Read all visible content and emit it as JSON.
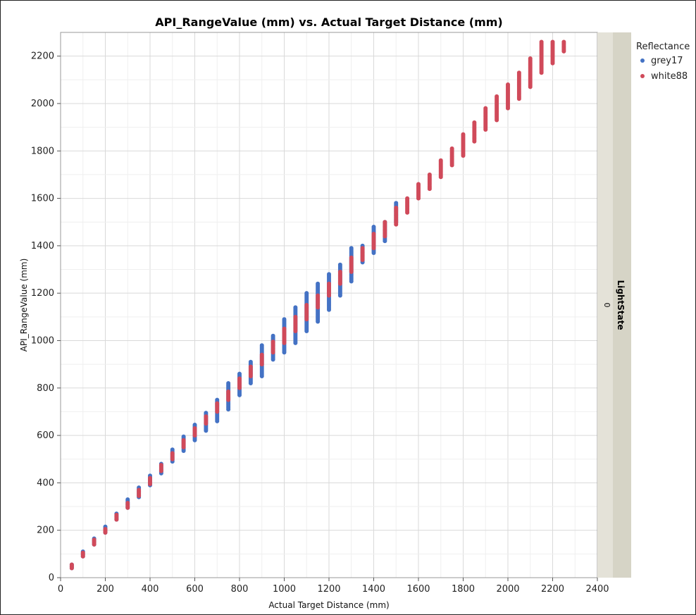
{
  "chart_data": {
    "type": "scatter",
    "title": "API_RangeValue (mm) vs. Actual Target Distance (mm)",
    "xlabel": "Actual Target Distance (mm)",
    "ylabel": "API_RangeValue (mm)",
    "xlim": [
      0,
      2400
    ],
    "ylim": [
      0,
      2300
    ],
    "x_ticks": [
      0,
      200,
      400,
      600,
      800,
      1000,
      1200,
      1400,
      1600,
      1800,
      2000,
      2200,
      2400
    ],
    "y_ticks": [
      0,
      200,
      400,
      600,
      800,
      1000,
      1200,
      1400,
      1600,
      1800,
      2000,
      2200
    ],
    "grid": true,
    "legend": {
      "title": "Reflectance",
      "position": "right"
    },
    "facet": {
      "label": "LightState",
      "value": "0"
    },
    "series": [
      {
        "name": "grey17",
        "color": "#4472C4",
        "groups": [
          {
            "x": 50,
            "y_min": 40,
            "y_max": 55
          },
          {
            "x": 100,
            "y_min": 90,
            "y_max": 110
          },
          {
            "x": 150,
            "y_min": 140,
            "y_max": 165
          },
          {
            "x": 200,
            "y_min": 190,
            "y_max": 215
          },
          {
            "x": 250,
            "y_min": 245,
            "y_max": 270
          },
          {
            "x": 300,
            "y_min": 295,
            "y_max": 330
          },
          {
            "x": 350,
            "y_min": 340,
            "y_max": 380
          },
          {
            "x": 400,
            "y_min": 390,
            "y_max": 430
          },
          {
            "x": 450,
            "y_min": 440,
            "y_max": 480
          },
          {
            "x": 500,
            "y_min": 490,
            "y_max": 540
          },
          {
            "x": 550,
            "y_min": 535,
            "y_max": 595
          },
          {
            "x": 600,
            "y_min": 580,
            "y_max": 645
          },
          {
            "x": 650,
            "y_min": 620,
            "y_max": 695
          },
          {
            "x": 700,
            "y_min": 660,
            "y_max": 750
          },
          {
            "x": 750,
            "y_min": 710,
            "y_max": 820
          },
          {
            "x": 800,
            "y_min": 770,
            "y_max": 860
          },
          {
            "x": 850,
            "y_min": 820,
            "y_max": 910
          },
          {
            "x": 900,
            "y_min": 850,
            "y_max": 980
          },
          {
            "x": 950,
            "y_min": 920,
            "y_max": 1020
          },
          {
            "x": 1000,
            "y_min": 950,
            "y_max": 1090
          },
          {
            "x": 1050,
            "y_min": 990,
            "y_max": 1140
          },
          {
            "x": 1100,
            "y_min": 1040,
            "y_max": 1200
          },
          {
            "x": 1150,
            "y_min": 1080,
            "y_max": 1240
          },
          {
            "x": 1200,
            "y_min": 1130,
            "y_max": 1280
          },
          {
            "x": 1250,
            "y_min": 1190,
            "y_max": 1320
          },
          {
            "x": 1300,
            "y_min": 1250,
            "y_max": 1390
          },
          {
            "x": 1350,
            "y_min": 1330,
            "y_max": 1400
          },
          {
            "x": 1400,
            "y_min": 1370,
            "y_max": 1480
          },
          {
            "x": 1450,
            "y_min": 1420,
            "y_max": 1500
          },
          {
            "x": 1500,
            "y_min": 1500,
            "y_max": 1580
          }
        ]
      },
      {
        "name": "white88",
        "color": "#D04A5A",
        "groups": [
          {
            "x": 50,
            "y_min": 40,
            "y_max": 55
          },
          {
            "x": 100,
            "y_min": 90,
            "y_max": 105
          },
          {
            "x": 150,
            "y_min": 140,
            "y_max": 160
          },
          {
            "x": 200,
            "y_min": 190,
            "y_max": 205
          },
          {
            "x": 250,
            "y_min": 245,
            "y_max": 265
          },
          {
            "x": 300,
            "y_min": 295,
            "y_max": 315
          },
          {
            "x": 350,
            "y_min": 345,
            "y_max": 370
          },
          {
            "x": 400,
            "y_min": 395,
            "y_max": 420
          },
          {
            "x": 450,
            "y_min": 450,
            "y_max": 475
          },
          {
            "x": 500,
            "y_min": 500,
            "y_max": 525
          },
          {
            "x": 550,
            "y_min": 550,
            "y_max": 580
          },
          {
            "x": 600,
            "y_min": 600,
            "y_max": 630
          },
          {
            "x": 650,
            "y_min": 650,
            "y_max": 680
          },
          {
            "x": 700,
            "y_min": 700,
            "y_max": 735
          },
          {
            "x": 750,
            "y_min": 750,
            "y_max": 785
          },
          {
            "x": 800,
            "y_min": 800,
            "y_max": 840
          },
          {
            "x": 850,
            "y_min": 850,
            "y_max": 890
          },
          {
            "x": 900,
            "y_min": 900,
            "y_max": 940
          },
          {
            "x": 950,
            "y_min": 950,
            "y_max": 995
          },
          {
            "x": 1000,
            "y_min": 990,
            "y_max": 1050
          },
          {
            "x": 1050,
            "y_min": 1040,
            "y_max": 1100
          },
          {
            "x": 1100,
            "y_min": 1090,
            "y_max": 1150
          },
          {
            "x": 1150,
            "y_min": 1140,
            "y_max": 1190
          },
          {
            "x": 1200,
            "y_min": 1190,
            "y_max": 1240
          },
          {
            "x": 1250,
            "y_min": 1240,
            "y_max": 1290
          },
          {
            "x": 1300,
            "y_min": 1290,
            "y_max": 1350
          },
          {
            "x": 1350,
            "y_min": 1340,
            "y_max": 1390
          },
          {
            "x": 1400,
            "y_min": 1390,
            "y_max": 1450
          },
          {
            "x": 1450,
            "y_min": 1440,
            "y_max": 1500
          },
          {
            "x": 1500,
            "y_min": 1490,
            "y_max": 1560
          },
          {
            "x": 1550,
            "y_min": 1540,
            "y_max": 1600
          },
          {
            "x": 1600,
            "y_min": 1600,
            "y_max": 1660
          },
          {
            "x": 1650,
            "y_min": 1640,
            "y_max": 1700
          },
          {
            "x": 1700,
            "y_min": 1690,
            "y_max": 1760
          },
          {
            "x": 1750,
            "y_min": 1740,
            "y_max": 1810
          },
          {
            "x": 1800,
            "y_min": 1780,
            "y_max": 1870
          },
          {
            "x": 1850,
            "y_min": 1840,
            "y_max": 1920
          },
          {
            "x": 1900,
            "y_min": 1890,
            "y_max": 1980
          },
          {
            "x": 1950,
            "y_min": 1930,
            "y_max": 2030
          },
          {
            "x": 2000,
            "y_min": 1980,
            "y_max": 2080
          },
          {
            "x": 2050,
            "y_min": 2020,
            "y_max": 2130
          },
          {
            "x": 2100,
            "y_min": 2070,
            "y_max": 2190
          },
          {
            "x": 2150,
            "y_min": 2130,
            "y_max": 2260
          },
          {
            "x": 2200,
            "y_min": 2170,
            "y_max": 2260
          },
          {
            "x": 2250,
            "y_min": 2220,
            "y_max": 2260
          }
        ]
      }
    ]
  }
}
